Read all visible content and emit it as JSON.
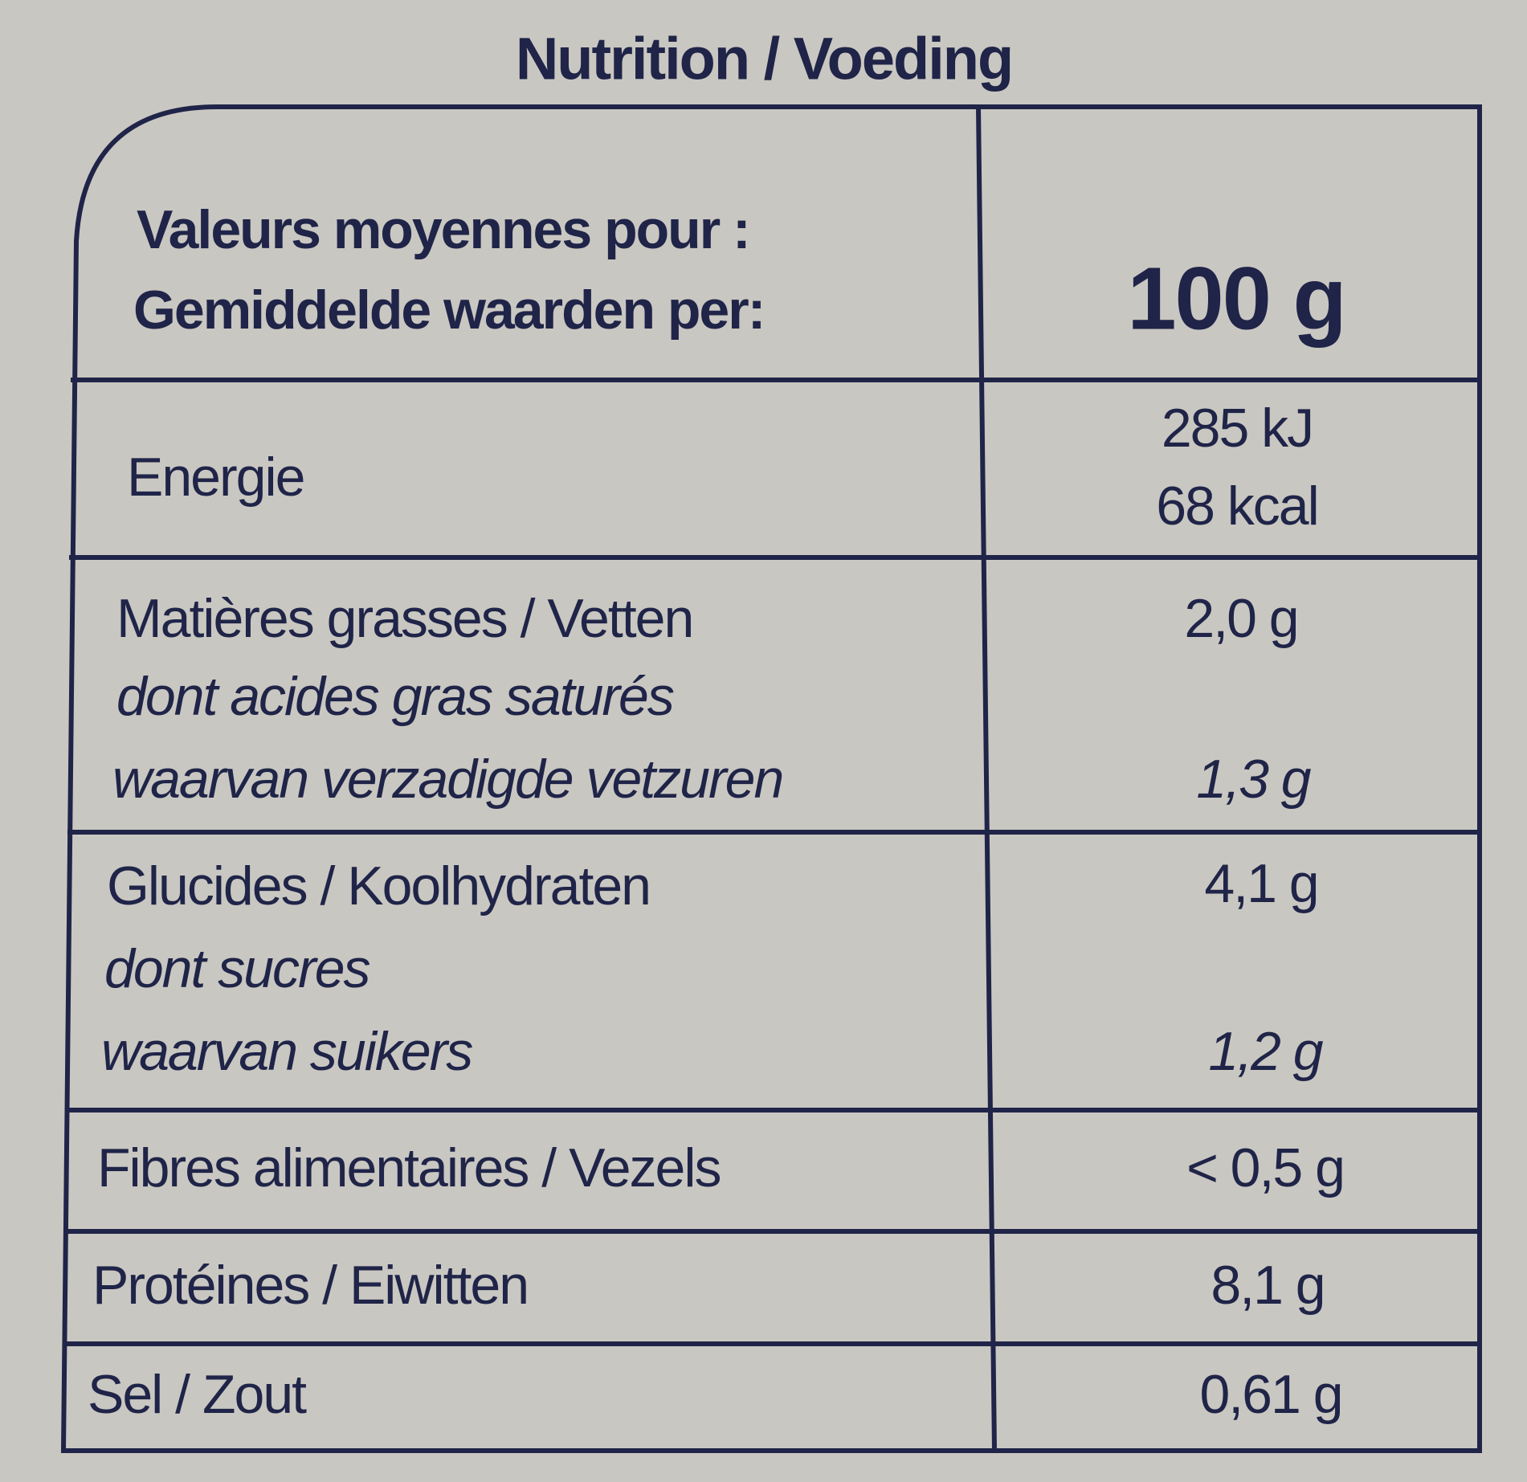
{
  "title": "Nutrition / Voeding",
  "table": {
    "header": {
      "label_lines": [
        "Valeurs moyennes pour :",
        "Gemiddelde waarden per:"
      ],
      "value": "100 g"
    },
    "rows": [
      {
        "label_lines": [
          "Energie"
        ],
        "values": [
          "285 kJ",
          "68 kcal"
        ]
      },
      {
        "label_lines": [
          "Matières grasses / Vetten",
          "dont acides gras saturés",
          "waarvan verzadigde vetzuren"
        ],
        "values": [
          "2,0 g",
          "1,3 g"
        ]
      },
      {
        "label_lines": [
          "Glucides / Koolhydraten",
          "dont sucres",
          "waarvan suikers"
        ],
        "values": [
          "4,1 g",
          "1,2 g"
        ]
      },
      {
        "label_lines": [
          "Fibres alimentaires / Vezels"
        ],
        "values": [
          "< 0,5 g"
        ]
      },
      {
        "label_lines": [
          "Protéines / Eiwitten"
        ],
        "values": [
          "8,1 g"
        ]
      },
      {
        "label_lines": [
          "Sel / Zout"
        ],
        "values": [
          "0,61 g"
        ]
      }
    ]
  }
}
